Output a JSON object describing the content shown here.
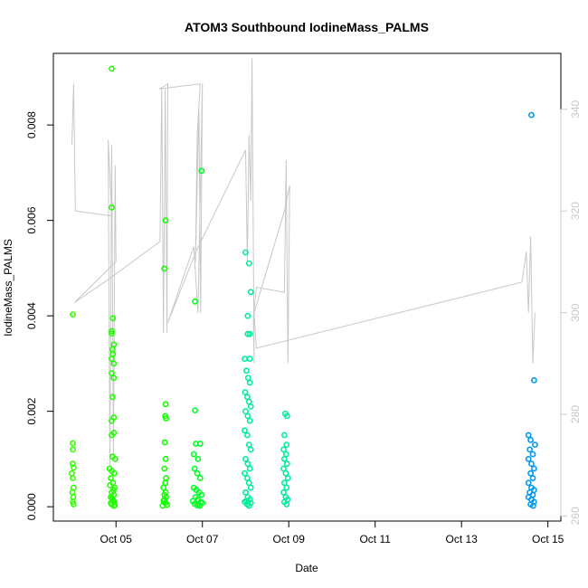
{
  "chart_data": {
    "type": "scatter",
    "title": "ATOM3 Southbound IodineMass_PALMS",
    "xlabel": "Date",
    "ylabel": "IodineMass_PALMS",
    "x_ticks": [
      "Oct 05",
      "Oct 07",
      "Oct 09",
      "Oct 11",
      "Oct 13",
      "Oct 15"
    ],
    "x_tick_days": [
      5,
      7,
      9,
      11,
      13,
      15
    ],
    "x_range_days": [
      3.55,
      15.3
    ],
    "y_ticks": [
      "0.000",
      "0.002",
      "0.004",
      "0.006",
      "0.008"
    ],
    "y_tick_values": [
      0,
      0.002,
      0.004,
      0.006,
      0.008
    ],
    "ylim": [
      -0.0003,
      0.0095
    ],
    "y2_ticks": [
      "260",
      "280",
      "300",
      "320",
      "340"
    ],
    "y2_tick_values": [
      260,
      280,
      300,
      320,
      340
    ],
    "y2lim": [
      259,
      351
    ],
    "colors": {
      "day4": "#33ff00",
      "day5": "#22ff00",
      "day6": "#11ff00",
      "day7": "#00ff22",
      "day8": "#00ee99",
      "day9": "#00ee99",
      "day14": "#0099ee",
      "line": "#c8c8c8",
      "frame": "#000000",
      "right_axis": "#c8c8c8"
    },
    "series": [
      {
        "color_key": "day4",
        "points": [
          [
            4.0,
            0.00403
          ],
          [
            4.0,
            0.00133
          ],
          [
            4.0,
            0.0012
          ],
          [
            4.0,
            0.0009
          ],
          [
            4.02,
            0.00082
          ],
          [
            3.98,
            0.0007
          ],
          [
            4.0,
            0.0006
          ],
          [
            4.02,
            0.0004
          ],
          [
            3.99,
            0.0003
          ],
          [
            4.01,
            0.0002
          ],
          [
            4.0,
            0.0001
          ],
          [
            4.02,
            5e-05
          ]
        ]
      },
      {
        "color_key": "day5",
        "points": [
          [
            4.9,
            0.00918
          ],
          [
            4.9,
            0.00627
          ],
          [
            4.93,
            0.00395
          ],
          [
            4.9,
            0.00368
          ],
          [
            4.9,
            0.00363
          ],
          [
            4.95,
            0.0034
          ],
          [
            4.92,
            0.0033
          ],
          [
            4.93,
            0.0032
          ],
          [
            4.9,
            0.0031
          ],
          [
            4.95,
            0.003
          ],
          [
            4.9,
            0.0028
          ],
          [
            4.95,
            0.0027
          ],
          [
            4.92,
            0.0023
          ],
          [
            4.95,
            0.00187
          ],
          [
            4.9,
            0.0018
          ],
          [
            4.95,
            0.00155
          ],
          [
            4.9,
            0.0015
          ],
          [
            4.92,
            0.00105
          ],
          [
            4.98,
            0.001
          ],
          [
            4.85,
            0.0008
          ],
          [
            4.9,
            0.00075
          ],
          [
            4.96,
            0.0007
          ],
          [
            4.88,
            0.0006
          ],
          [
            4.93,
            0.0005
          ],
          [
            4.97,
            0.0004
          ],
          [
            4.9,
            0.0003
          ],
          [
            4.95,
            0.00025
          ],
          [
            4.88,
            0.0002
          ],
          [
            4.92,
            0.00015
          ],
          [
            4.96,
            0.0001
          ],
          [
            4.9,
            5e-05
          ],
          [
            4.95,
            2e-05
          ],
          [
            4.88,
            8e-05
          ],
          [
            4.93,
            0.00012
          ],
          [
            4.97,
            3e-05
          ],
          [
            4.91,
            0.00018
          ],
          [
            4.94,
            0.00035
          ],
          [
            4.86,
            0.00045
          ]
        ]
      },
      {
        "color_key": "day6",
        "points": [
          [
            6.15,
            0.006
          ],
          [
            6.12,
            0.00499
          ],
          [
            6.15,
            0.00215
          ],
          [
            6.14,
            0.0019
          ],
          [
            6.16,
            0.00185
          ],
          [
            6.13,
            0.00135
          ],
          [
            6.15,
            0.001
          ],
          [
            6.12,
            0.0008
          ],
          [
            6.16,
            0.0006
          ],
          [
            6.14,
            0.0005
          ],
          [
            6.1,
            0.0004
          ],
          [
            6.15,
            0.0003
          ],
          [
            6.12,
            0.00025
          ],
          [
            6.16,
            0.0002
          ],
          [
            6.1,
            0.00012
          ],
          [
            6.14,
            8e-05
          ],
          [
            6.18,
            4e-05
          ],
          [
            6.08,
            2e-05
          ],
          [
            6.12,
            0.00015
          ]
        ]
      },
      {
        "color_key": "day7",
        "points": [
          [
            6.98,
            0.00704
          ],
          [
            6.83,
            0.0043
          ],
          [
            6.83,
            0.00202
          ],
          [
            6.85,
            0.00132
          ],
          [
            6.95,
            0.00132
          ],
          [
            6.8,
            0.0011
          ],
          [
            6.9,
            0.001
          ],
          [
            6.82,
            0.0008
          ],
          [
            6.88,
            0.0007
          ],
          [
            6.95,
            0.0006
          ],
          [
            6.8,
            0.0004
          ],
          [
            6.86,
            0.00035
          ],
          [
            6.92,
            0.0003
          ],
          [
            6.98,
            0.00025
          ],
          [
            6.84,
            0.0002
          ],
          [
            6.9,
            0.00015
          ],
          [
            6.96,
            0.0001
          ],
          [
            6.82,
            6e-05
          ],
          [
            6.88,
            3e-05
          ],
          [
            6.94,
            2e-05
          ],
          [
            7.0,
            8e-05
          ],
          [
            6.78,
            0.00012
          ]
        ]
      },
      {
        "color_key": "day8",
        "points": [
          [
            8.0,
            0.00533
          ],
          [
            8.08,
            0.0051
          ],
          [
            8.12,
            0.0045
          ],
          [
            8.05,
            0.004
          ],
          [
            8.05,
            0.00362
          ],
          [
            8.1,
            0.00362
          ],
          [
            7.98,
            0.0031
          ],
          [
            8.1,
            0.0031
          ],
          [
            8.02,
            0.00285
          ],
          [
            8.06,
            0.0027
          ],
          [
            8.1,
            0.0026
          ],
          [
            7.99,
            0.0024
          ],
          [
            8.04,
            0.0023
          ],
          [
            8.08,
            0.0022
          ],
          [
            8.12,
            0.0021
          ],
          [
            8.0,
            0.002
          ],
          [
            8.05,
            0.0019
          ],
          [
            8.1,
            0.0018
          ],
          [
            7.98,
            0.0016
          ],
          [
            8.04,
            0.0015
          ],
          [
            8.08,
            0.0013
          ],
          [
            8.12,
            0.0012
          ],
          [
            8.0,
            0.001
          ],
          [
            8.05,
            0.0009
          ],
          [
            8.1,
            0.0008
          ],
          [
            7.98,
            0.0007
          ],
          [
            8.04,
            0.0006
          ],
          [
            8.08,
            0.0005
          ],
          [
            8.12,
            0.0004
          ],
          [
            8.0,
            0.0003
          ],
          [
            8.05,
            0.0002
          ],
          [
            8.1,
            0.00015
          ],
          [
            7.98,
            0.0001
          ],
          [
            8.04,
            5e-05
          ],
          [
            8.08,
            2e-05
          ],
          [
            8.12,
            8e-05
          ],
          [
            8.02,
            0.00012
          ]
        ]
      },
      {
        "color_key": "day9",
        "points": [
          [
            8.92,
            0.00195
          ],
          [
            8.96,
            0.0019
          ],
          [
            8.9,
            0.0015
          ],
          [
            8.95,
            0.0013
          ],
          [
            8.88,
            0.0012
          ],
          [
            8.94,
            0.0011
          ],
          [
            8.9,
            0.001
          ],
          [
            8.96,
            0.0009
          ],
          [
            8.88,
            0.0008
          ],
          [
            8.93,
            0.0007
          ],
          [
            8.98,
            0.0006
          ],
          [
            8.9,
            0.0005
          ],
          [
            8.95,
            0.0004
          ],
          [
            8.88,
            0.0003
          ],
          [
            8.93,
            0.0002
          ],
          [
            8.97,
            0.00015
          ],
          [
            8.9,
            0.0001
          ],
          [
            8.95,
            5e-05
          ]
        ]
      },
      {
        "color_key": "day14",
        "points": [
          [
            14.62,
            0.00821
          ],
          [
            14.68,
            0.00265
          ],
          [
            14.55,
            0.0015
          ],
          [
            14.6,
            0.0014
          ],
          [
            14.7,
            0.0013
          ],
          [
            14.58,
            0.0012
          ],
          [
            14.65,
            0.0011
          ],
          [
            14.55,
            0.001
          ],
          [
            14.62,
            0.0009
          ],
          [
            14.68,
            0.0008
          ],
          [
            14.6,
            0.0007
          ],
          [
            14.65,
            0.0006
          ],
          [
            14.55,
            0.0005
          ],
          [
            14.62,
            0.0004
          ],
          [
            14.68,
            0.00035
          ],
          [
            14.58,
            0.0003
          ],
          [
            14.65,
            0.00025
          ],
          [
            14.55,
            0.0002
          ],
          [
            14.62,
            0.00015
          ],
          [
            14.68,
            0.0001
          ],
          [
            14.6,
            5e-05
          ],
          [
            14.66,
            2e-05
          ]
        ]
      }
    ],
    "line_series": {
      "axis": "right",
      "points": [
        [
          3.98,
          333
        ],
        [
          4.02,
          345
        ],
        [
          4.06,
          320
        ],
        [
          4.9,
          319
        ],
        [
          4.82,
          334
        ],
        [
          4.86,
          270
        ],
        [
          4.9,
          333
        ],
        [
          4.94,
          272
        ],
        [
          4.98,
          329
        ],
        [
          5.0,
          310
        ],
        [
          4.04,
          302
        ],
        [
          4.9,
          307
        ],
        [
          6.02,
          314
        ],
        [
          6.06,
          344
        ],
        [
          6.1,
          296
        ],
        [
          6.14,
          344
        ],
        [
          6.18,
          296
        ],
        [
          6.2,
          345
        ],
        [
          6.0,
          344
        ],
        [
          6.95,
          345
        ],
        [
          6.88,
          335
        ],
        [
          6.84,
          310
        ],
        [
          6.92,
          340
        ],
        [
          6.96,
          300
        ],
        [
          7.0,
          345
        ],
        [
          6.9,
          300
        ],
        [
          6.8,
          313
        ],
        [
          6.2,
          298
        ],
        [
          6.85,
          312
        ],
        [
          8.0,
          332
        ],
        [
          8.04,
          310
        ],
        [
          8.08,
          335
        ],
        [
          8.12,
          322
        ],
        [
          8.15,
          350
        ],
        [
          8.2,
          290
        ],
        [
          8.18,
          299
        ],
        [
          8.25,
          305
        ],
        [
          8.9,
          304
        ],
        [
          8.94,
          330
        ],
        [
          8.98,
          290
        ],
        [
          9.02,
          325
        ],
        [
          8.9,
          320
        ],
        [
          8.2,
          300
        ],
        [
          8.25,
          293
        ],
        [
          14.4,
          306
        ],
        [
          14.5,
          312
        ],
        [
          14.55,
          300
        ],
        [
          14.6,
          315
        ],
        [
          14.65,
          290
        ],
        [
          14.7,
          300
        ]
      ]
    }
  }
}
